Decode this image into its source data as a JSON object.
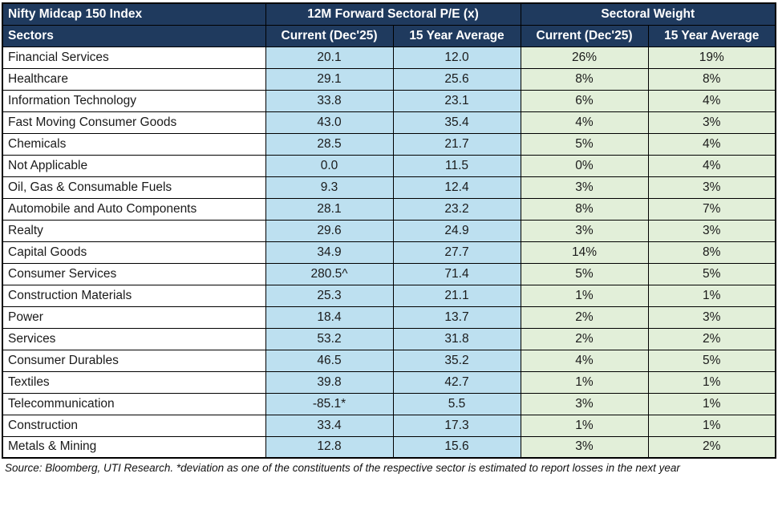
{
  "colors": {
    "header-bg": "#1f3a5e",
    "header-text": "#ffffff",
    "pe-bg": "#bde0f0",
    "wt-bg": "#e2efd9",
    "border": "#000000",
    "cell-text": "#1a1a1a"
  },
  "chart_data": {
    "type": "table",
    "title": "Nifty Midcap 150 Index",
    "group_headers": {
      "pe": "12M Forward Sectoral P/E (x)",
      "weight": "Sectoral Weight"
    },
    "columns": [
      "Sectors",
      "Current (Dec'25)",
      "15 Year Average",
      "Current (Dec'25)",
      "15 Year Average"
    ],
    "rows": [
      [
        "Financial Services",
        "20.1",
        "12.0",
        "26%",
        "19%"
      ],
      [
        "Healthcare",
        "29.1",
        "25.6",
        "8%",
        "8%"
      ],
      [
        "Information Technology",
        "33.8",
        "23.1",
        "6%",
        "4%"
      ],
      [
        "Fast Moving Consumer Goods",
        "43.0",
        "35.4",
        "4%",
        "3%"
      ],
      [
        "Chemicals",
        "28.5",
        "21.7",
        "5%",
        "4%"
      ],
      [
        "Not Applicable",
        "0.0",
        "11.5",
        "0%",
        "4%"
      ],
      [
        "Oil, Gas & Consumable Fuels",
        "9.3",
        "12.4",
        "3%",
        "3%"
      ],
      [
        "Automobile and Auto Components",
        "28.1",
        "23.2",
        "8%",
        "7%"
      ],
      [
        "Realty",
        "29.6",
        "24.9",
        "3%",
        "3%"
      ],
      [
        "Capital Goods",
        "34.9",
        "27.7",
        "14%",
        "8%"
      ],
      [
        "Consumer Services",
        "280.5^",
        "71.4",
        "5%",
        "5%"
      ],
      [
        "Construction Materials",
        "25.3",
        "21.1",
        "1%",
        "1%"
      ],
      [
        "Power",
        "18.4",
        "13.7",
        "2%",
        "3%"
      ],
      [
        "Services",
        "53.2",
        "31.8",
        "2%",
        "2%"
      ],
      [
        "Consumer Durables",
        "46.5",
        "35.2",
        "4%",
        "5%"
      ],
      [
        "Textiles",
        "39.8",
        "42.7",
        "1%",
        "1%"
      ],
      [
        "Telecommunication",
        "-85.1*",
        "5.5",
        "3%",
        "1%"
      ],
      [
        "Construction",
        "33.4",
        "17.3",
        "1%",
        "1%"
      ],
      [
        "Metals & Mining",
        "12.8",
        "15.6",
        "3%",
        "2%"
      ]
    ],
    "footnote": "Source: Bloomberg, UTI Research.  *deviation as one of the constituents of the respective sector is estimated to report losses in the next year"
  }
}
